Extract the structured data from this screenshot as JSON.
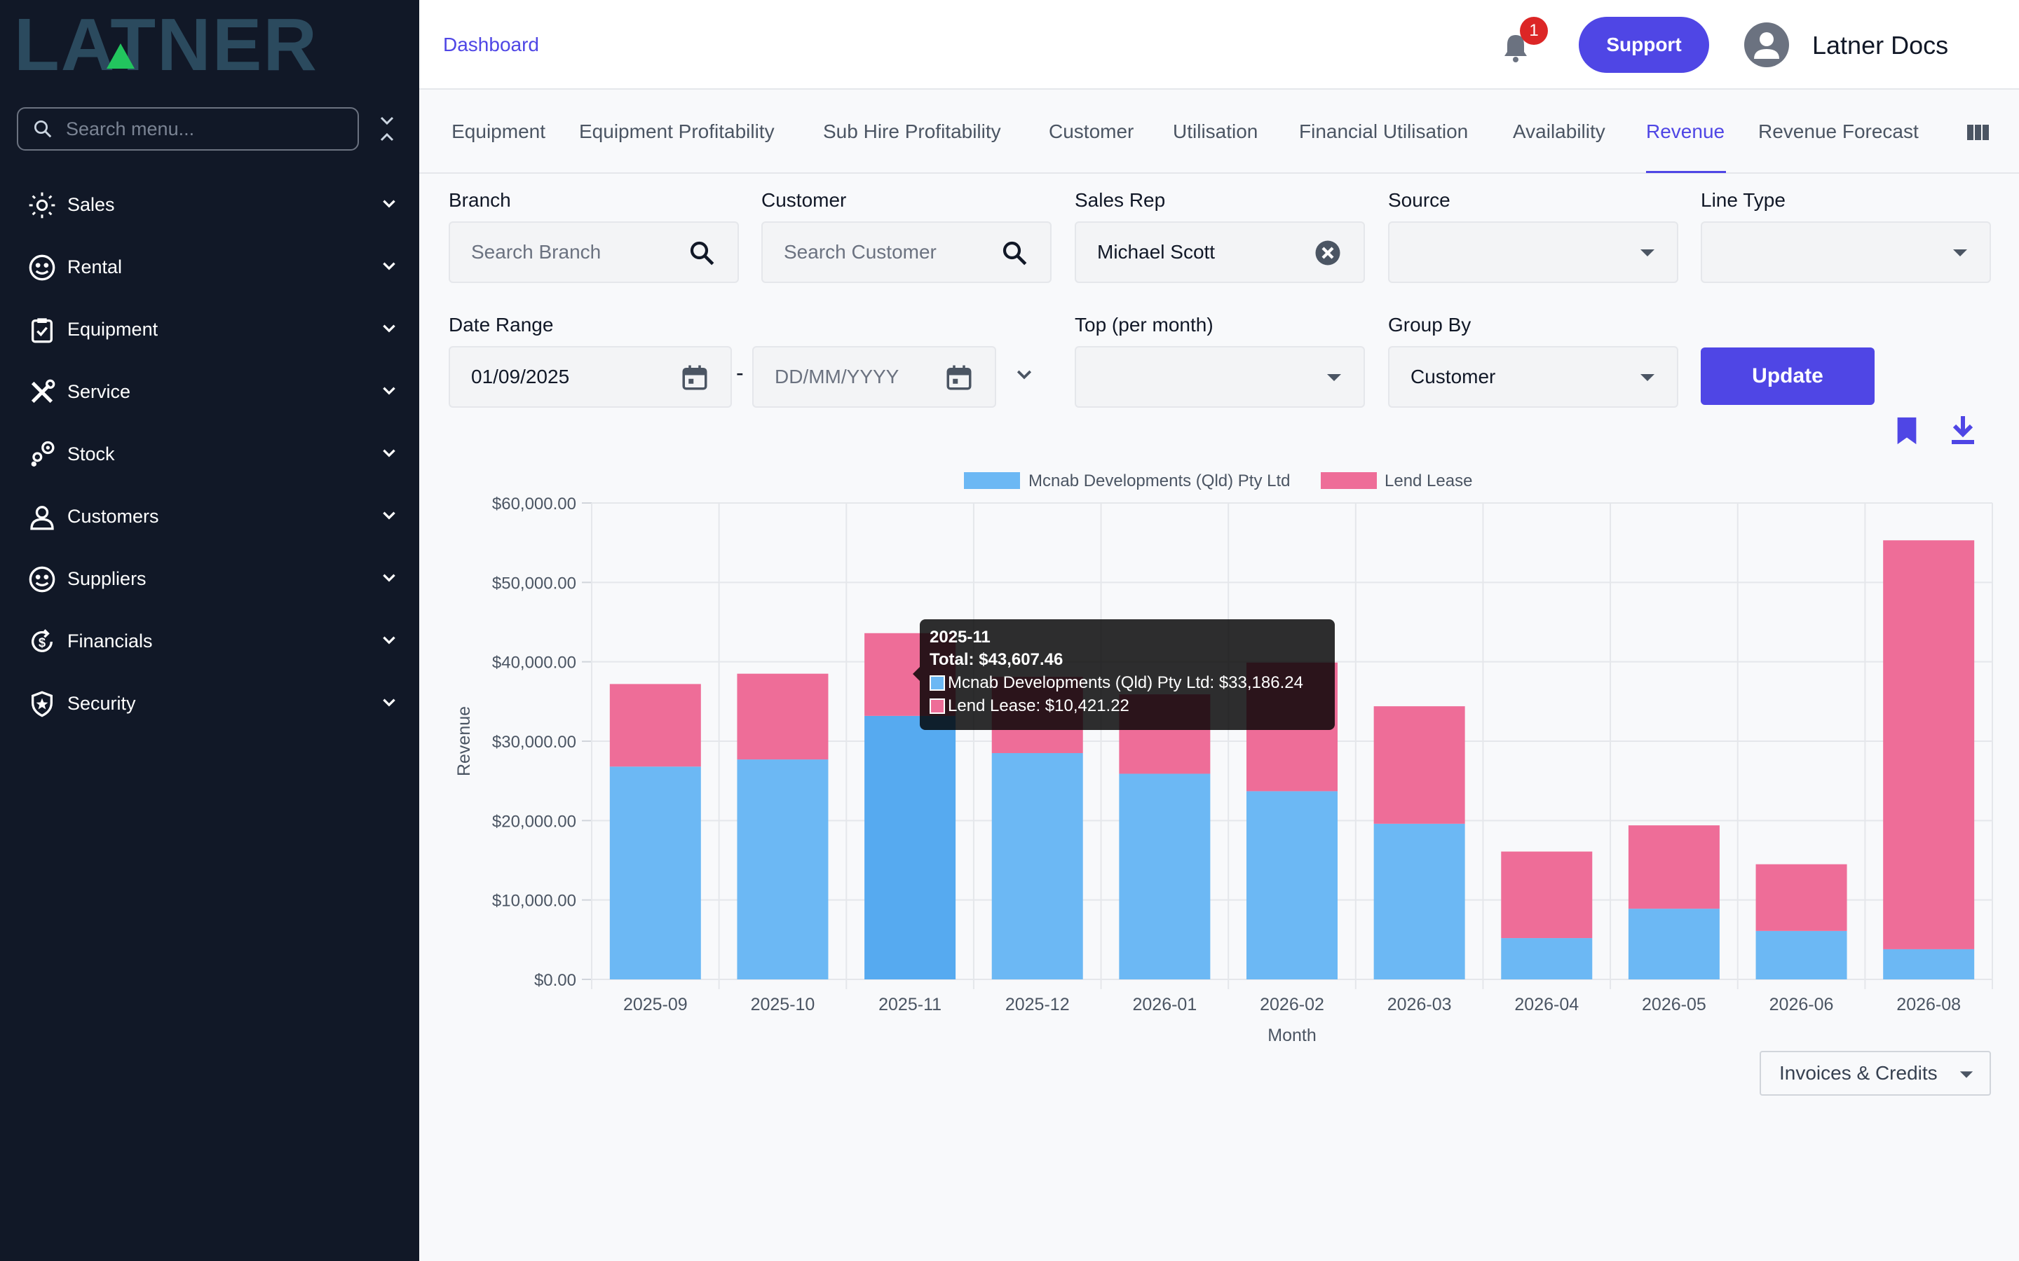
{
  "brand": {
    "logo_text": "LATNER"
  },
  "sidebar": {
    "search_placeholder": "Search menu...",
    "items": [
      {
        "label": "Sales",
        "icon": "sales-icon"
      },
      {
        "label": "Rental",
        "icon": "rental-icon"
      },
      {
        "label": "Equipment",
        "icon": "equipment-icon"
      },
      {
        "label": "Service",
        "icon": "service-icon"
      },
      {
        "label": "Stock",
        "icon": "stock-icon"
      },
      {
        "label": "Customers",
        "icon": "customers-icon"
      },
      {
        "label": "Suppliers",
        "icon": "suppliers-icon"
      },
      {
        "label": "Financials",
        "icon": "financials-icon"
      },
      {
        "label": "Security",
        "icon": "security-icon"
      }
    ]
  },
  "header": {
    "breadcrumb": "Dashboard",
    "notifications_count": "1",
    "support_label": "Support",
    "user_name": "Latner Docs"
  },
  "tabs": {
    "items": [
      "Equipment",
      "Equipment Profitability",
      "Sub Hire Profitability",
      "Customer",
      "Utilisation",
      "Financial Utilisation",
      "Availability",
      "Revenue",
      "Revenue Forecast"
    ],
    "active": "Revenue"
  },
  "filters": {
    "branch": {
      "label": "Branch",
      "placeholder": "Search Branch"
    },
    "customer": {
      "label": "Customer",
      "placeholder": "Search Customer"
    },
    "sales_rep": {
      "label": "Sales Rep",
      "value": "Michael Scott"
    },
    "source": {
      "label": "Source",
      "value": ""
    },
    "line_type": {
      "label": "Line Type",
      "value": ""
    },
    "date_range": {
      "label": "Date Range",
      "start": "01/09/2025",
      "end_placeholder": "DD/MM/YYYY",
      "separator": "-"
    },
    "top_per_month": {
      "label": "Top (per month)",
      "value": ""
    },
    "group_by": {
      "label": "Group By",
      "value": "Customer"
    },
    "update_label": "Update"
  },
  "chart_data": {
    "type": "bar",
    "stacked": true,
    "categories": [
      "2025-09",
      "2025-10",
      "2025-11",
      "2025-12",
      "2026-01",
      "2026-02",
      "2026-03",
      "2026-04",
      "2026-05",
      "2026-06",
      "2026-08"
    ],
    "series": [
      {
        "name": "Mcnab Developments (Qld) Pty Ltd",
        "color": "#6cb8f4",
        "values": [
          26800,
          27700,
          33186.24,
          28500,
          25900,
          23700,
          19600,
          5200,
          8900,
          6100,
          3800
        ]
      },
      {
        "name": "Lend Lease",
        "color": "#ee6d98",
        "values": [
          10400,
          10800,
          10421.22,
          9600,
          10000,
          16200,
          14800,
          10900,
          10500,
          8400,
          51500
        ]
      }
    ],
    "xlabel": "Month",
    "ylabel": "Revenue",
    "ylim": [
      0,
      60000
    ],
    "yticks": [
      "$0.00",
      "$10,000.00",
      "$20,000.00",
      "$30,000.00",
      "$40,000.00",
      "$50,000.00",
      "$60,000.00"
    ],
    "grid": true,
    "legend": "top-center",
    "highlight_index": 2,
    "tooltip": {
      "title": "2025-11",
      "total": "Total: $43,607.46",
      "lines": [
        "Mcnab Developments (Qld) Pty Ltd: $33,186.24",
        "Lend Lease: $10,421.22"
      ]
    }
  },
  "footer": {
    "invoice_filter": "Invoices & Credits"
  },
  "colors": {
    "accent": "#4f46e5",
    "sidebar_bg": "#111827",
    "logo": "#2b4a5e",
    "logo_accent": "#22c55e"
  }
}
